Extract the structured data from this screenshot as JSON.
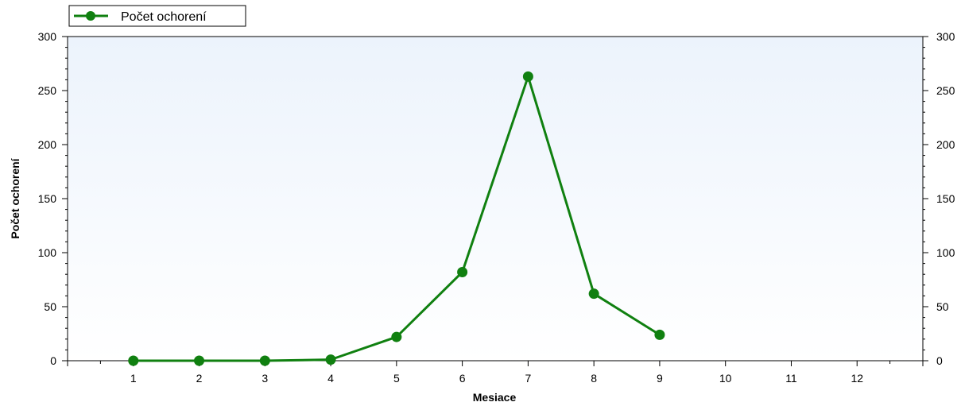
{
  "chart_data": {
    "type": "line",
    "xlabel": "Mesiace",
    "ylabel": "Počet ochorení",
    "xlim": [
      0,
      13
    ],
    "ylim": [
      0,
      300
    ],
    "x_ticks": [
      1,
      2,
      3,
      4,
      5,
      6,
      7,
      8,
      9,
      10,
      11,
      12
    ],
    "y_ticks": [
      0,
      50,
      100,
      150,
      200,
      250,
      300
    ],
    "y_ticks_right": [
      0,
      50,
      100,
      150,
      200,
      250,
      300
    ],
    "grid": false,
    "legend_position": "top-left",
    "series": [
      {
        "name": "Počet ochorení",
        "color": "#108010",
        "marker": "circle",
        "x": [
          1,
          2,
          3,
          4,
          5,
          6,
          7,
          8,
          9
        ],
        "values": [
          0,
          0,
          0,
          1,
          22,
          82,
          263,
          62,
          24
        ]
      }
    ],
    "background_gradient": [
      "#ecf3fc",
      "#ffffff"
    ]
  }
}
